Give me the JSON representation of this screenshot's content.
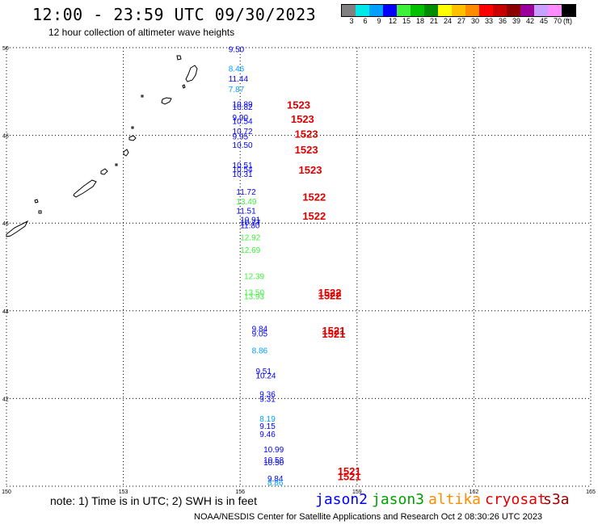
{
  "header": {
    "title": "12:00 - 23:59 UTC 09/30/2023",
    "subtitle": "12 hour collection of altimeter wave heights"
  },
  "scale": {
    "colors": [
      "#808080",
      "#00e8e8",
      "#00a0ff",
      "#0000ff",
      "#3cf03c",
      "#00c000",
      "#008c00",
      "#ffff00",
      "#ffc000",
      "#ff8c00",
      "#ff0000",
      "#c80000",
      "#8c0000",
      "#9b009b",
      "#c8a0ff",
      "#ff8cff",
      "#000000"
    ],
    "labels": [
      "3",
      "6",
      "9",
      "12",
      "15",
      "18",
      "21",
      "24",
      "27",
      "30",
      "33",
      "36",
      "39",
      "42",
      "45",
      "70",
      "(ft)"
    ]
  },
  "footer": {
    "note": "note:  1) Time is in UTC; 2) SWH is in feet",
    "credit": "NOAA/NESDIS Center for Satellite Applications and Research    Oct  2 08:30:26 UTC 2023",
    "legend": [
      {
        "label": "jason2",
        "color": "#0000ff"
      },
      {
        "label": "jason3",
        "color": "#00a000"
      },
      {
        "label": "altika",
        "color": "#ff8c00"
      },
      {
        "label": "cryosat",
        "color": "#e00000"
      },
      {
        "label": "s3a",
        "color": "#a00000"
      }
    ]
  },
  "chart_data": {
    "type": "scatter",
    "title": "12:00 - 23:59 UTC 09/30/2023",
    "xlabel": "",
    "ylabel": "",
    "xlim": [
      150,
      165
    ],
    "ylim": [
      40,
      50
    ],
    "x_ticks": [
      150,
      153,
      156,
      159,
      162,
      165
    ],
    "y_ticks": [
      40,
      42,
      44,
      46,
      48,
      50
    ],
    "grid": true,
    "points": [
      {
        "x": 155.7,
        "y": 49.97,
        "swh": "9.50",
        "color": "#0000ff"
      },
      {
        "x": 155.7,
        "y": 49.53,
        "swh": "8.46",
        "color": "#00a0ff"
      },
      {
        "x": 155.7,
        "y": 49.3,
        "swh": "11.44",
        "color": "#0000ff"
      },
      {
        "x": 155.7,
        "y": 49.06,
        "swh": "7.87",
        "color": "#00a0ff"
      },
      {
        "x": 155.8,
        "y": 48.72,
        "swh": "10.89",
        "color": "#0000ff"
      },
      {
        "x": 155.8,
        "y": 48.66,
        "swh": "10.82",
        "color": "#0000ff"
      },
      {
        "x": 155.8,
        "y": 48.42,
        "swh": "9.90",
        "color": "#0000ff"
      },
      {
        "x": 155.8,
        "y": 48.33,
        "swh": "10.54",
        "color": "#0000ff"
      },
      {
        "x": 155.8,
        "y": 48.1,
        "swh": "10.72",
        "color": "#0000ff"
      },
      {
        "x": 155.8,
        "y": 47.98,
        "swh": "9.95",
        "color": "#0000ff"
      },
      {
        "x": 155.8,
        "y": 47.79,
        "swh": "10.50",
        "color": "#0000ff"
      },
      {
        "x": 155.8,
        "y": 47.33,
        "swh": "10.51",
        "color": "#0000ff"
      },
      {
        "x": 155.8,
        "y": 47.24,
        "swh": "10.54",
        "color": "#0000ff"
      },
      {
        "x": 155.8,
        "y": 47.13,
        "swh": "10.31",
        "color": "#0000ff"
      },
      {
        "x": 155.9,
        "y": 46.72,
        "swh": "11.72",
        "color": "#0000ff"
      },
      {
        "x": 155.9,
        "y": 46.5,
        "swh": "13.49",
        "color": "#3cf03c"
      },
      {
        "x": 155.9,
        "y": 46.29,
        "swh": "11.51",
        "color": "#0000ff"
      },
      {
        "x": 156.0,
        "y": 46.09,
        "swh": "10.91",
        "color": "#0000ff"
      },
      {
        "x": 156.0,
        "y": 46.02,
        "swh": "10.77",
        "color": "#0000ff"
      },
      {
        "x": 156.0,
        "y": 45.96,
        "swh": "11.80",
        "color": "#0000ff"
      },
      {
        "x": 156.0,
        "y": 45.68,
        "swh": "12.92",
        "color": "#3cf03c"
      },
      {
        "x": 156.0,
        "y": 45.4,
        "swh": "12.69",
        "color": "#3cf03c"
      },
      {
        "x": 156.1,
        "y": 44.8,
        "swh": "12.39",
        "color": "#3cf03c"
      },
      {
        "x": 156.1,
        "y": 44.43,
        "swh": "13.50",
        "color": "#3cf03c"
      },
      {
        "x": 156.1,
        "y": 44.34,
        "swh": "13.93",
        "color": "#3cf03c"
      },
      {
        "x": 156.3,
        "y": 43.6,
        "swh": "9.84",
        "color": "#0000ff"
      },
      {
        "x": 156.3,
        "y": 43.49,
        "swh": "9.05",
        "color": "#0000ff"
      },
      {
        "x": 156.3,
        "y": 43.1,
        "swh": "8.86",
        "color": "#00a0ff"
      },
      {
        "x": 156.4,
        "y": 42.63,
        "swh": "9.51",
        "color": "#0000ff"
      },
      {
        "x": 156.4,
        "y": 42.53,
        "swh": "10.24",
        "color": "#0000ff"
      },
      {
        "x": 156.5,
        "y": 42.11,
        "swh": "9.36",
        "color": "#0000ff"
      },
      {
        "x": 156.5,
        "y": 42.0,
        "swh": "9.31",
        "color": "#0000ff"
      },
      {
        "x": 156.5,
        "y": 41.55,
        "swh": "8.19",
        "color": "#00a0ff"
      },
      {
        "x": 156.5,
        "y": 41.38,
        "swh": "9.15",
        "color": "#0000ff"
      },
      {
        "x": 156.5,
        "y": 41.2,
        "swh": "9.46",
        "color": "#0000ff"
      },
      {
        "x": 156.6,
        "y": 40.85,
        "swh": "10.99",
        "color": "#0000ff"
      },
      {
        "x": 156.6,
        "y": 40.61,
        "swh": "10.58",
        "color": "#0000ff"
      },
      {
        "x": 156.6,
        "y": 40.55,
        "swh": "10.50",
        "color": "#0000ff"
      },
      {
        "x": 156.7,
        "y": 40.18,
        "swh": "9.84",
        "color": "#0000ff"
      },
      {
        "x": 156.7,
        "y": 40.09,
        "swh": "8.86",
        "color": "#00a0ff"
      }
    ],
    "annotations": [
      {
        "x": 157.2,
        "y": 48.7,
        "text": "1523"
      },
      {
        "x": 157.3,
        "y": 48.38,
        "text": "1523"
      },
      {
        "x": 157.4,
        "y": 48.04,
        "text": "1523"
      },
      {
        "x": 157.4,
        "y": 47.68,
        "text": "1523"
      },
      {
        "x": 157.5,
        "y": 47.22,
        "text": "1523"
      },
      {
        "x": 157.6,
        "y": 46.6,
        "text": "1522"
      },
      {
        "x": 157.6,
        "y": 46.17,
        "text": "1522"
      },
      {
        "x": 158.0,
        "y": 44.42,
        "text": "1522"
      },
      {
        "x": 158.0,
        "y": 44.36,
        "text": "1522"
      },
      {
        "x": 158.1,
        "y": 43.55,
        "text": "1521"
      },
      {
        "x": 158.1,
        "y": 43.48,
        "text": "1521"
      },
      {
        "x": 158.5,
        "y": 40.35,
        "text": "1521"
      },
      {
        "x": 158.5,
        "y": 40.23,
        "text": "1521"
      }
    ]
  }
}
